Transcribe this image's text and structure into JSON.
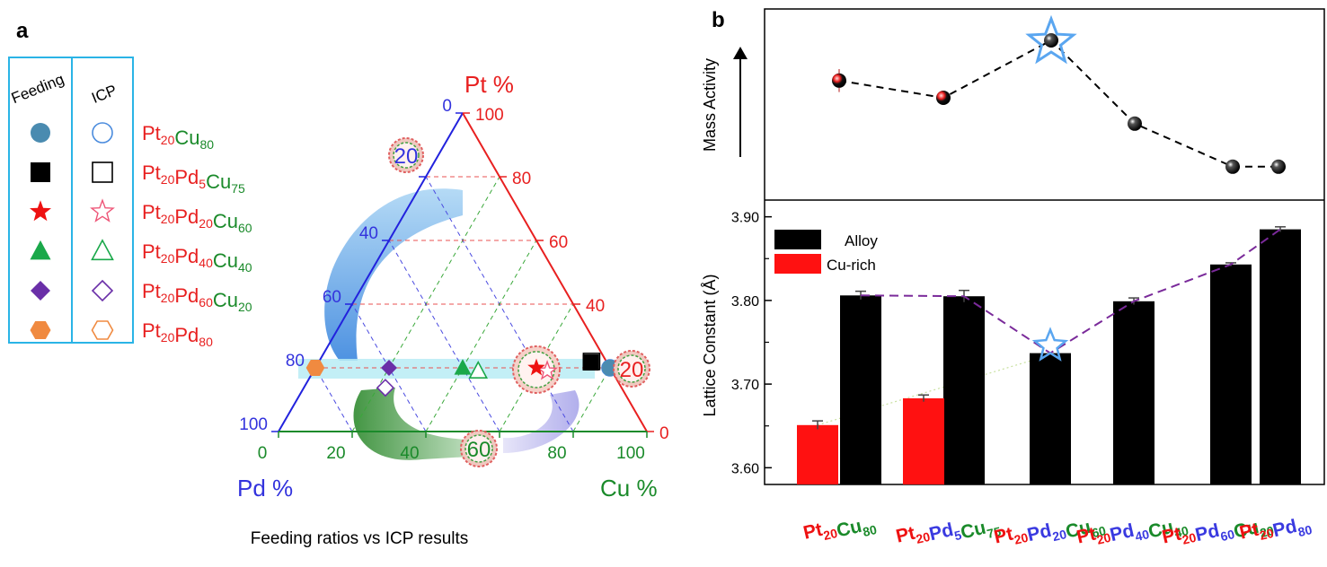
{
  "panel_a": {
    "label": "a",
    "legend": {
      "feeding_header": "Feeding",
      "icp_header": "ICP",
      "rows": [
        {
          "base": "Pt",
          "n1": "20",
          "mid": "Cu",
          "n2": "80",
          "shape": "circle",
          "color": "#4a8bb0"
        },
        {
          "base": "Pt",
          "n1": "20",
          "mid": "Pd",
          "n2": "5",
          "tail": "Cu",
          "n3": "75",
          "shape": "square",
          "color": "#000000"
        },
        {
          "base": "Pt",
          "n1": "20",
          "mid": "Pd",
          "n2": "20",
          "tail": "Cu",
          "n3": "60",
          "shape": "star",
          "color": "#ee1111"
        },
        {
          "base": "Pt",
          "n1": "20",
          "mid": "Pd",
          "n2": "40",
          "tail": "Cu",
          "n3": "40",
          "shape": "triangle",
          "color": "#1aa84a"
        },
        {
          "base": "Pt",
          "n1": "20",
          "mid": "Pd",
          "n2": "60",
          "tail": "Cu",
          "n3": "20",
          "shape": "diamond",
          "color": "#6a2fa8"
        },
        {
          "base": "Pt",
          "n1": "20",
          "mid": "Pd",
          "n2": "80",
          "shape": "hexagon",
          "color": "#f08a40"
        }
      ]
    },
    "ternary": {
      "pt_axis": "Pt %",
      "pd_axis": "Pd %",
      "cu_axis": "Cu %",
      "pt_ticks": [
        "100",
        "80",
        "60",
        "40",
        "0"
      ],
      "pd_ticks": [
        "0",
        "20",
        "40",
        "60",
        "80",
        "100"
      ],
      "cu_ticks": [
        "0",
        "20",
        "40",
        "60",
        "80",
        "100"
      ],
      "highlight_20_left": "20",
      "highlight_60_bottom": "60",
      "highlight_20_right": "20"
    },
    "caption": "Feeding ratios vs ICP results"
  },
  "panel_b": {
    "label": "b",
    "top_ylabel": "Mass Activity",
    "bottom_ylabel": "Lattice Constant (Å)",
    "legend": [
      "Alloy",
      "Cu-rich"
    ],
    "ytick_labels": [
      "3.60",
      "3.70",
      "3.80",
      "3.90"
    ],
    "xlabels": [
      [
        {
          "t": "Pt",
          "c": "#ee1111"
        },
        {
          "t": "20",
          "c": "#ee1111",
          "sub": true
        },
        {
          "t": "Cu",
          "c": "#1a8a2a"
        },
        {
          "t": "80",
          "c": "#1a8a2a",
          "sub": true
        }
      ],
      [
        {
          "t": "Pt",
          "c": "#ee1111"
        },
        {
          "t": "20",
          "c": "#ee1111",
          "sub": true
        },
        {
          "t": "Pd",
          "c": "#3a3ae0"
        },
        {
          "t": "5",
          "c": "#3a3ae0",
          "sub": true
        },
        {
          "t": "Cu",
          "c": "#1a8a2a"
        },
        {
          "t": "75",
          "c": "#1a8a2a",
          "sub": true
        }
      ],
      [
        {
          "t": "Pt",
          "c": "#ee1111"
        },
        {
          "t": "20",
          "c": "#ee1111",
          "sub": true
        },
        {
          "t": "Pd",
          "c": "#3a3ae0"
        },
        {
          "t": "20",
          "c": "#3a3ae0",
          "sub": true
        },
        {
          "t": "Cu",
          "c": "#1a8a2a"
        },
        {
          "t": "60",
          "c": "#1a8a2a",
          "sub": true
        }
      ],
      [
        {
          "t": "Pt",
          "c": "#ee1111"
        },
        {
          "t": "20",
          "c": "#ee1111",
          "sub": true
        },
        {
          "t": "Pd",
          "c": "#3a3ae0"
        },
        {
          "t": "40",
          "c": "#3a3ae0",
          "sub": true
        },
        {
          "t": "Cu",
          "c": "#1a8a2a"
        },
        {
          "t": "40",
          "c": "#1a8a2a",
          "sub": true
        }
      ],
      [
        {
          "t": "Pt",
          "c": "#ee1111"
        },
        {
          "t": "20",
          "c": "#ee1111",
          "sub": true
        },
        {
          "t": "Pd",
          "c": "#3a3ae0"
        },
        {
          "t": "60",
          "c": "#3a3ae0",
          "sub": true
        },
        {
          "t": "Cu",
          "c": "#1a8a2a"
        },
        {
          "t": "20",
          "c": "#1a8a2a",
          "sub": true
        }
      ],
      [
        {
          "t": "Pt",
          "c": "#ee1111"
        },
        {
          "t": "20",
          "c": "#ee1111",
          "sub": true
        },
        {
          "t": "Pd",
          "c": "#3a3ae0"
        },
        {
          "t": "80",
          "c": "#3a3ae0",
          "sub": true
        }
      ]
    ]
  },
  "chart_data": [
    {
      "type": "scatter",
      "subtype": "ternary",
      "axes": [
        "Pt %",
        "Pd %",
        "Cu %"
      ],
      "series": [
        {
          "name": "Feeding",
          "points": [
            {
              "Pt": 20,
              "Pd": 0,
              "Cu": 80
            },
            {
              "Pt": 20,
              "Pd": 5,
              "Cu": 75
            },
            {
              "Pt": 20,
              "Pd": 20,
              "Cu": 60
            },
            {
              "Pt": 20,
              "Pd": 40,
              "Cu": 40
            },
            {
              "Pt": 20,
              "Pd": 60,
              "Cu": 20
            },
            {
              "Pt": 20,
              "Pd": 80,
              "Cu": 0
            }
          ]
        },
        {
          "name": "ICP",
          "points": [
            {
              "Pt": 20,
              "Pd": 0,
              "Cu": 80
            },
            {
              "Pt": 22,
              "Pd": 5,
              "Cu": 73
            },
            {
              "Pt": 19,
              "Pd": 19,
              "Cu": 62
            },
            {
              "Pt": 19,
              "Pd": 38,
              "Cu": 43
            },
            {
              "Pt": 16,
              "Pd": 63,
              "Cu": 21
            },
            {
              "Pt": 20,
              "Pd": 80,
              "Cu": 0
            }
          ]
        }
      ]
    },
    {
      "type": "line",
      "ylabel": "Mass Activity",
      "categories": [
        "Pt20Cu80",
        "Pt20Pd5Cu75",
        "Pt20Pd20Cu60",
        "Pt20Pd40Cu40",
        "Pt20Pd60Cu20",
        "Pt20Pd80"
      ],
      "values": [
        0.72,
        0.6,
        1.0,
        0.42,
        0.12,
        0.12
      ],
      "units": "relative (no scale)",
      "error": [
        0.08,
        0.02,
        0.03,
        0,
        0,
        0
      ],
      "best": "Pt20Pd20Cu60"
    },
    {
      "type": "bar",
      "ylabel": "Lattice Constant (Å)",
      "ylim": [
        3.58,
        3.92
      ],
      "categories": [
        "Pt20Cu80",
        "Pt20Pd5Cu75",
        "Pt20Pd20Cu60",
        "Pt20Pd40Cu40",
        "Pt20Pd60Cu20",
        "Pt20Pd80"
      ],
      "series": [
        {
          "name": "Alloy",
          "values": [
            3.806,
            3.805,
            3.737,
            3.799,
            3.843,
            3.885
          ],
          "errors": [
            0.005,
            0.007,
            0,
            0.004,
            0.002,
            0.003
          ],
          "color": "#000000"
        },
        {
          "name": "Cu-rich",
          "values": [
            3.651,
            3.683,
            null,
            null,
            null,
            null
          ],
          "errors": [
            0.005,
            0.004,
            0,
            0,
            0,
            0
          ],
          "color": "#ff1111"
        }
      ],
      "legend": "top-left"
    }
  ]
}
